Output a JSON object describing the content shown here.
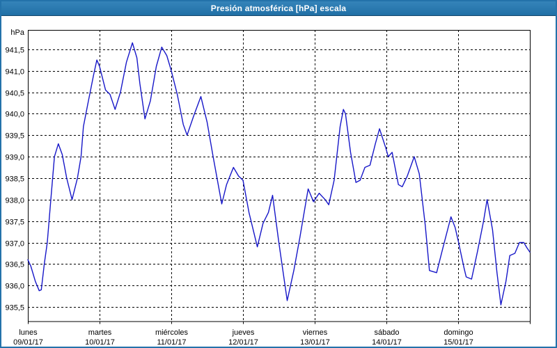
{
  "window": {
    "title": "Presión atmosférica [hPa] escala"
  },
  "colors": {
    "titlebar_bg": "#2473ad",
    "titlebar_text": "#ffffff",
    "window_border": "#2372aa",
    "plot_bg": "#ffffff",
    "grid": "#000000",
    "axis_text": "#000000",
    "line": "#1616c8"
  },
  "chart_data": {
    "type": "line",
    "title": "Presión atmosférica [hPa] escala",
    "ylabel": "hPa",
    "xlabel": "",
    "grid": "dashed",
    "legend_position": "none",
    "x_axis": {
      "total_hours": 168,
      "hours_per_day": 24,
      "days": [
        {
          "name": "lunes",
          "date": "09/01/17"
        },
        {
          "name": "martes",
          "date": "10/01/17"
        },
        {
          "name": "miércoles",
          "date": "11/01/17"
        },
        {
          "name": "jueves",
          "date": "12/01/17"
        },
        {
          "name": "viernes",
          "date": "13/01/17"
        },
        {
          "name": "sábado",
          "date": "14/01/17"
        },
        {
          "name": "domingo",
          "date": "15/01/17"
        }
      ]
    },
    "y_axis": {
      "min": 935.17,
      "max": 941.95,
      "tick_step": 0.5,
      "ticks": [
        941.5,
        941.0,
        940.5,
        940.0,
        939.5,
        939.0,
        938.5,
        938.0,
        937.5,
        937.0,
        936.5,
        936.0,
        935.5
      ],
      "tick_labels": [
        "941,5",
        "941,0",
        "940,5",
        "940,0",
        "939,5",
        "939,0",
        "938,5",
        "938,0",
        "937,5",
        "937,0",
        "936,5",
        "936,0",
        "935,5"
      ]
    },
    "series": [
      {
        "name": "Presión atmosférica",
        "unit": "hPa",
        "color": "#1616c8",
        "points_hour_hpa": [
          [
            0,
            936.6
          ],
          [
            1,
            936.45
          ],
          [
            2.5,
            936.1
          ],
          [
            3.8,
            935.88
          ],
          [
            4.5,
            935.9
          ],
          [
            5.5,
            936.5
          ],
          [
            6.5,
            937.0
          ],
          [
            7.7,
            938.0
          ],
          [
            8.9,
            939.0
          ],
          [
            10.2,
            939.3
          ],
          [
            11.5,
            939.05
          ],
          [
            13,
            938.5
          ],
          [
            14.8,
            938.0
          ],
          [
            16.6,
            938.5
          ],
          [
            17.8,
            939.0
          ],
          [
            18.6,
            939.7
          ],
          [
            20,
            940.2
          ],
          [
            22,
            940.9
          ],
          [
            23.1,
            941.25
          ],
          [
            24,
            941.1
          ],
          [
            26,
            940.55
          ],
          [
            27.5,
            940.45
          ],
          [
            29.2,
            940.1
          ],
          [
            31,
            940.5
          ],
          [
            33,
            941.2
          ],
          [
            35,
            941.65
          ],
          [
            36.5,
            941.3
          ],
          [
            37.5,
            940.7
          ],
          [
            39.2,
            939.88
          ],
          [
            41,
            940.3
          ],
          [
            43,
            941.1
          ],
          [
            44.8,
            941.55
          ],
          [
            46.5,
            941.35
          ],
          [
            48,
            941.0
          ],
          [
            50,
            940.45
          ],
          [
            52,
            939.75
          ],
          [
            53.3,
            939.5
          ],
          [
            55.5,
            939.95
          ],
          [
            57.9,
            940.4
          ],
          [
            60,
            939.8
          ],
          [
            62,
            939.0
          ],
          [
            64.9,
            937.9
          ],
          [
            66.5,
            938.35
          ],
          [
            68.8,
            938.75
          ],
          [
            70.5,
            938.55
          ],
          [
            72,
            938.45
          ],
          [
            74,
            937.7
          ],
          [
            76.8,
            936.9
          ],
          [
            78.7,
            937.45
          ],
          [
            80.5,
            937.7
          ],
          [
            81.9,
            938.1
          ],
          [
            84,
            937.0
          ],
          [
            86.8,
            935.65
          ],
          [
            89,
            936.35
          ],
          [
            91,
            937.1
          ],
          [
            93.8,
            938.25
          ],
          [
            95.6,
            937.95
          ],
          [
            97.5,
            938.15
          ],
          [
            99.5,
            938.0
          ],
          [
            100.7,
            937.88
          ],
          [
            102.5,
            938.45
          ],
          [
            104.5,
            939.7
          ],
          [
            105.6,
            940.1
          ],
          [
            106.3,
            940.0
          ],
          [
            108,
            939.1
          ],
          [
            109.8,
            938.4
          ],
          [
            111.2,
            938.45
          ],
          [
            112.8,
            938.75
          ],
          [
            114.5,
            938.8
          ],
          [
            116.3,
            939.3
          ],
          [
            117.7,
            939.65
          ],
          [
            119.8,
            939.2
          ],
          [
            120.6,
            939.0
          ],
          [
            121.9,
            939.1
          ],
          [
            124,
            938.35
          ],
          [
            125.3,
            938.3
          ],
          [
            127,
            938.55
          ],
          [
            129.3,
            939.0
          ],
          [
            131,
            938.6
          ],
          [
            133,
            937.4
          ],
          [
            134.4,
            936.35
          ],
          [
            136.8,
            936.3
          ],
          [
            139,
            936.9
          ],
          [
            141.6,
            937.6
          ],
          [
            143,
            937.35
          ],
          [
            144,
            937.05
          ],
          [
            146,
            936.4
          ],
          [
            146.7,
            936.2
          ],
          [
            148.5,
            936.15
          ],
          [
            150.5,
            936.8
          ],
          [
            152.5,
            937.5
          ],
          [
            153.7,
            938.0
          ],
          [
            155.5,
            937.3
          ],
          [
            157,
            936.3
          ],
          [
            158.3,
            935.55
          ],
          [
            160,
            936.1
          ],
          [
            161.3,
            936.7
          ],
          [
            163,
            936.75
          ],
          [
            164.5,
            937.0
          ],
          [
            166,
            937.0
          ],
          [
            167,
            936.88
          ],
          [
            168,
            936.78
          ]
        ]
      }
    ]
  }
}
